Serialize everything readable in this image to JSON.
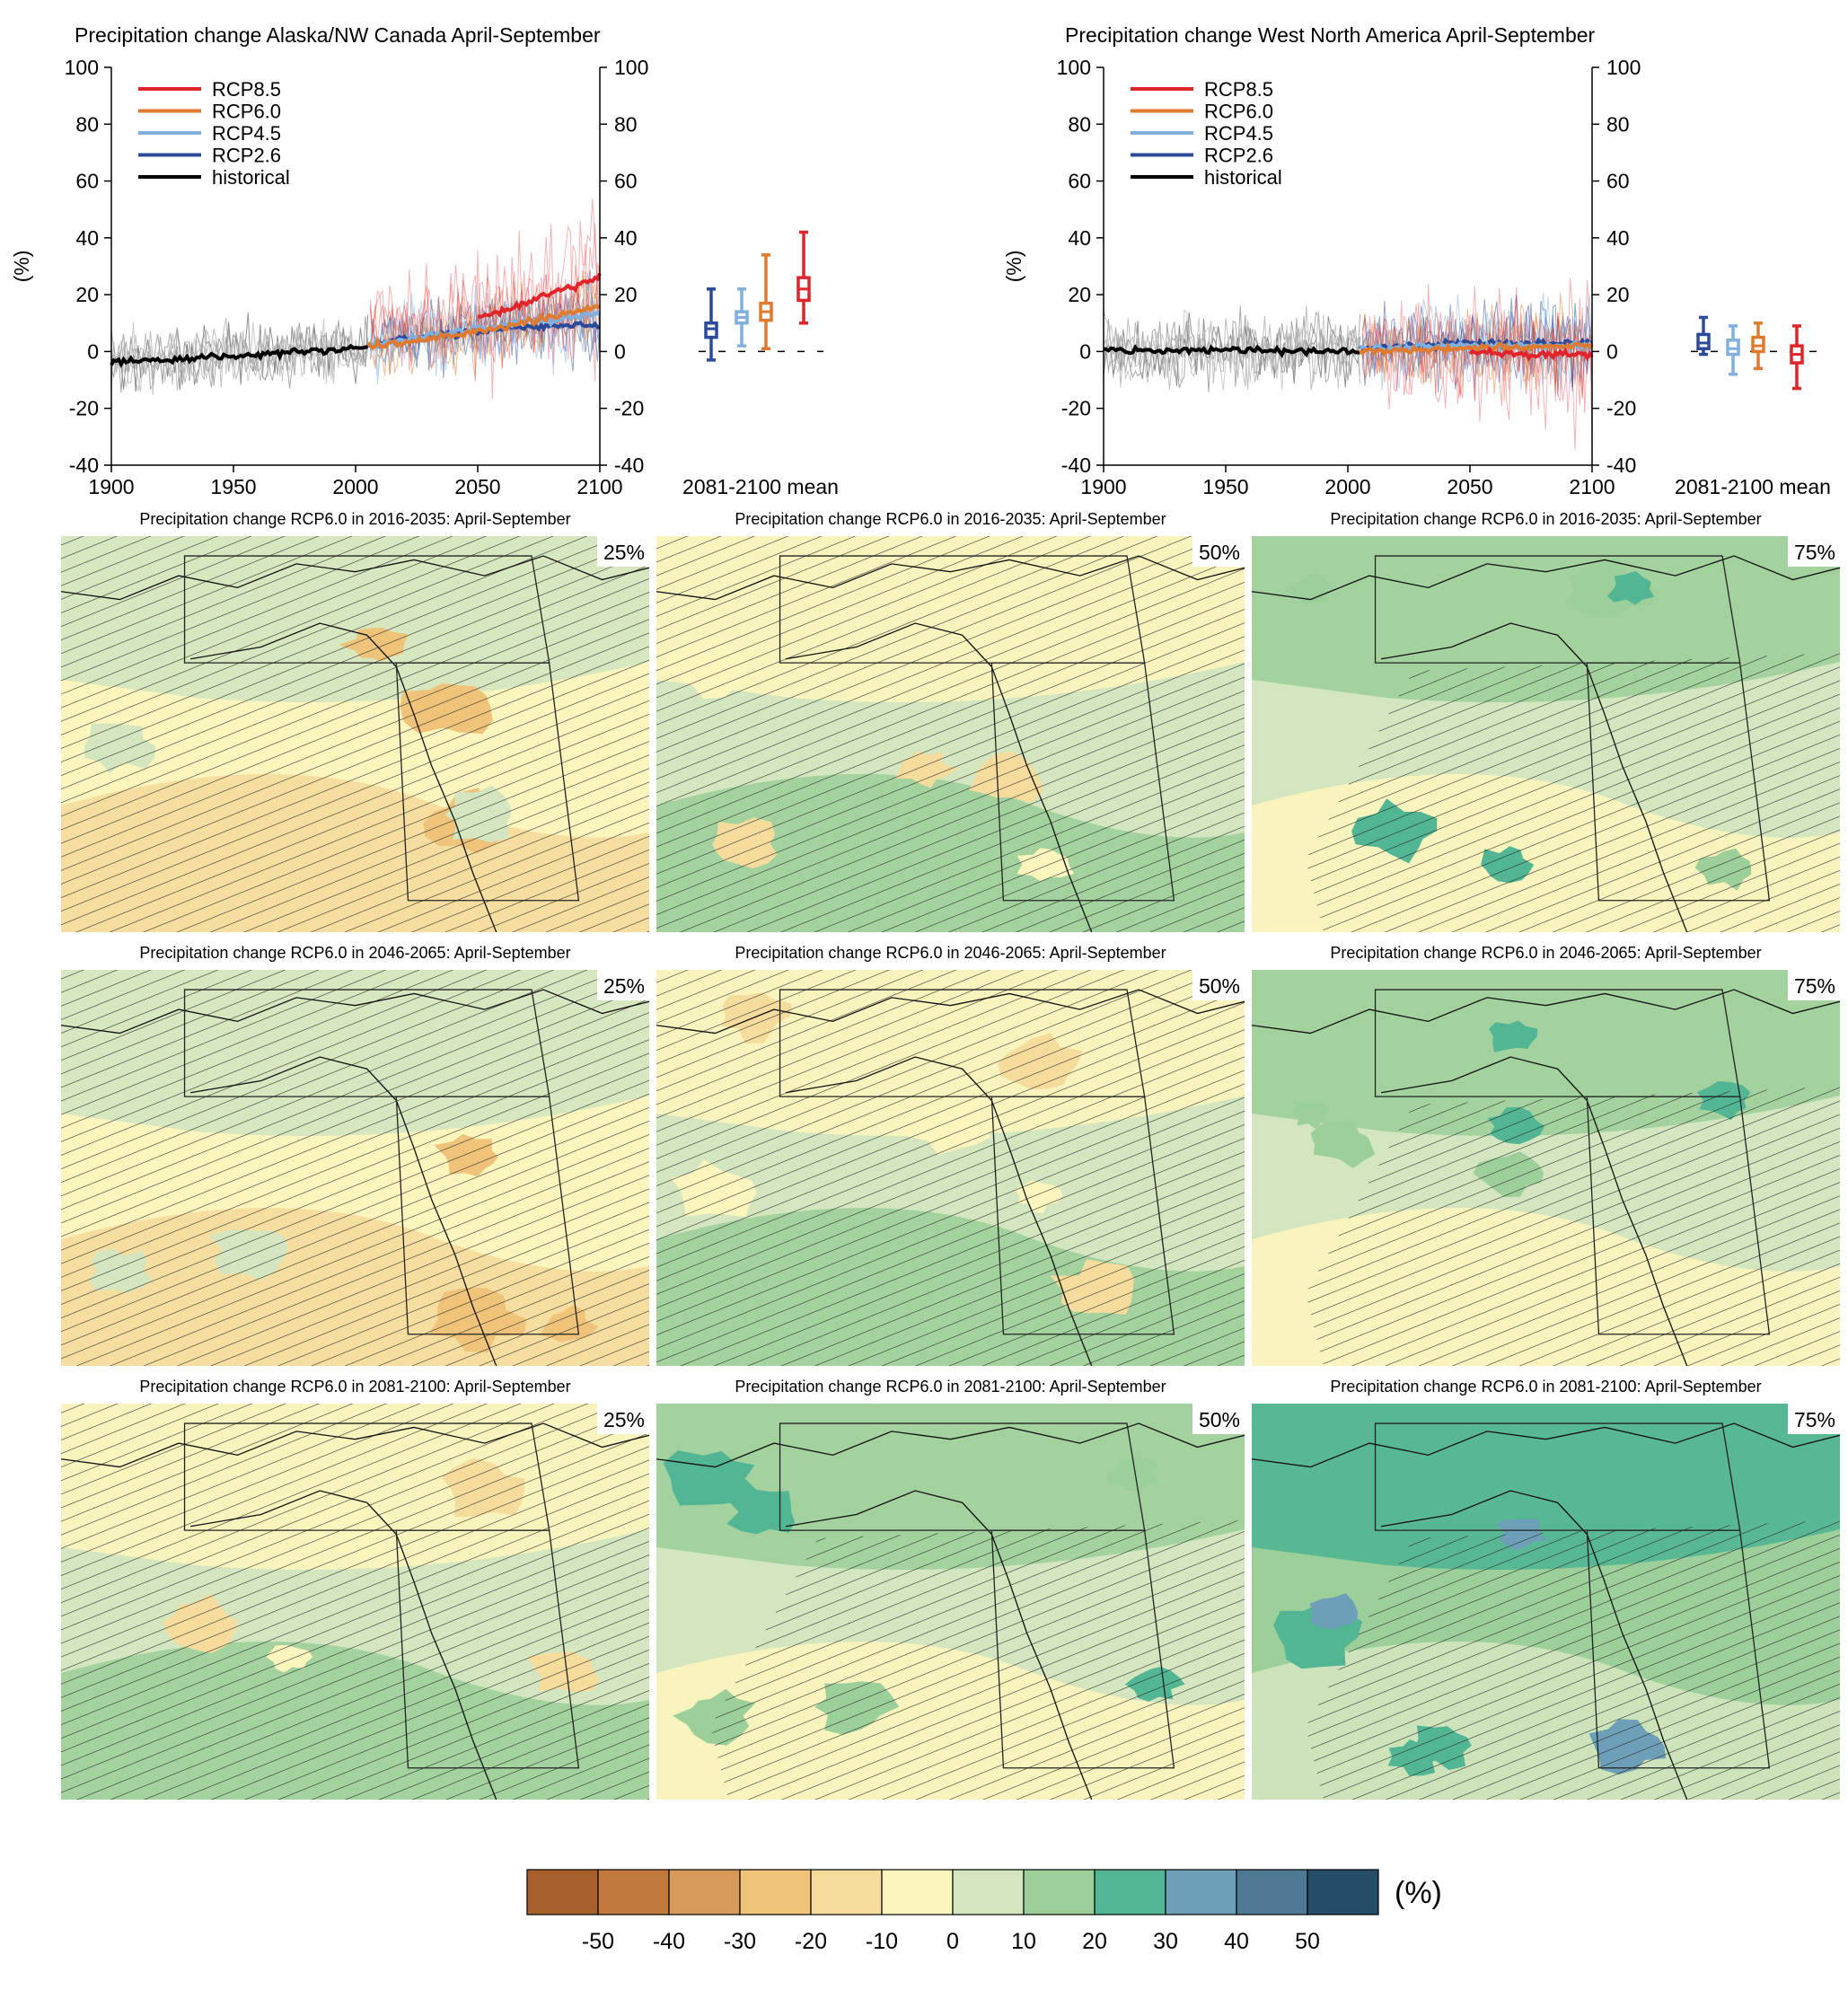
{
  "chart_data": [
    {
      "type": "line",
      "title": "Precipitation change Alaska/NW Canada April-September",
      "ylabel": "(%)",
      "xlim": [
        1900,
        2100
      ],
      "ylim": [
        -40,
        100
      ],
      "x_ticks": [
        "1900",
        "1950",
        "2000",
        "2050",
        "2100"
      ],
      "y_ticks": [
        "100",
        "80",
        "60",
        "40",
        "20",
        "0",
        "-20",
        "-40"
      ],
      "legend": [
        "RCP8.5",
        "RCP6.0",
        "RCP4.5",
        "RCP2.6",
        "historical"
      ],
      "legend_position": "top-left",
      "series": [
        {
          "name": "historical",
          "color": "#000000",
          "x": [
            1900,
            1920,
            1940,
            1960,
            1980,
            2000,
            2005
          ],
          "y": [
            -4,
            -3,
            -2,
            -1,
            0,
            1,
            2
          ]
        },
        {
          "name": "RCP2.6",
          "color": "#2b4a9a",
          "x": [
            2005,
            2025,
            2050,
            2075,
            2100
          ],
          "y": [
            2,
            5,
            7,
            9,
            9
          ]
        },
        {
          "name": "RCP4.5",
          "color": "#7fb0de",
          "x": [
            2005,
            2025,
            2050,
            2075,
            2100
          ],
          "y": [
            2,
            5,
            8,
            11,
            13
          ]
        },
        {
          "name": "RCP6.0",
          "color": "#e07a2e",
          "x": [
            2005,
            2025,
            2050,
            2075,
            2100
          ],
          "y": [
            2,
            4,
            7,
            11,
            16
          ]
        },
        {
          "name": "RCP8.5",
          "color": "#e0242a",
          "x": [
            2050,
            2060,
            2075,
            2090,
            2100
          ],
          "y": [
            12,
            14,
            19,
            23,
            27
          ]
        }
      ],
      "boxplot_label": "2081-2100 mean",
      "boxplots": [
        {
          "name": "RCP2.6",
          "color": "#2b4a9a",
          "min": -3,
          "q1": 5,
          "median": 8,
          "q3": 10,
          "max": 22
        },
        {
          "name": "RCP4.5",
          "color": "#7fb0de",
          "min": 2,
          "q1": 10,
          "median": 12,
          "q3": 14,
          "max": 22
        },
        {
          "name": "RCP6.0",
          "color": "#e07a2e",
          "min": 1,
          "q1": 11,
          "median": 14,
          "q3": 17,
          "max": 34
        },
        {
          "name": "RCP8.5",
          "color": "#e0242a",
          "min": 10,
          "q1": 18,
          "median": 22,
          "q3": 26,
          "max": 42
        }
      ]
    },
    {
      "type": "line",
      "title": "Precipitation change West North America April-September",
      "ylabel": "(%)",
      "xlim": [
        1900,
        2100
      ],
      "ylim": [
        -40,
        100
      ],
      "x_ticks": [
        "1900",
        "1950",
        "2000",
        "2050",
        "2100"
      ],
      "y_ticks": [
        "100",
        "80",
        "60",
        "40",
        "20",
        "0",
        "-20",
        "-40"
      ],
      "legend": [
        "RCP8.5",
        "RCP6.0",
        "RCP4.5",
        "RCP2.6",
        "historical"
      ],
      "legend_position": "top-left",
      "series": [
        {
          "name": "historical",
          "color": "#000000",
          "x": [
            1900,
            1925,
            1950,
            1975,
            2005
          ],
          "y": [
            1,
            0,
            1,
            0,
            0
          ]
        },
        {
          "name": "RCP2.6",
          "color": "#2b4a9a",
          "x": [
            2005,
            2050,
            2100
          ],
          "y": [
            1,
            3,
            3
          ]
        },
        {
          "name": "RCP4.5",
          "color": "#7fb0de",
          "x": [
            2005,
            2050,
            2100
          ],
          "y": [
            1,
            2,
            2
          ]
        },
        {
          "name": "RCP6.0",
          "color": "#e07a2e",
          "x": [
            2005,
            2050,
            2100
          ],
          "y": [
            0,
            1,
            2
          ]
        },
        {
          "name": "RCP8.5",
          "color": "#e0242a",
          "x": [
            2050,
            2075,
            2100
          ],
          "y": [
            0,
            -1,
            -1
          ]
        }
      ],
      "boxplot_label": "2081-2100 mean",
      "boxplots": [
        {
          "name": "RCP2.6",
          "color": "#2b4a9a",
          "min": -1,
          "q1": 1,
          "median": 3,
          "q3": 6,
          "max": 12
        },
        {
          "name": "RCP4.5",
          "color": "#7fb0de",
          "min": -8,
          "q1": -1,
          "median": 1,
          "q3": 4,
          "max": 9
        },
        {
          "name": "RCP6.0",
          "color": "#e07a2e",
          "min": -6,
          "q1": 0,
          "median": 2,
          "q3": 5,
          "max": 10
        },
        {
          "name": "RCP8.5",
          "color": "#e0242a",
          "min": -13,
          "q1": -4,
          "median": -1,
          "q3": 2,
          "max": 9
        }
      ]
    },
    {
      "type": "heatmap",
      "maps": [
        {
          "title": "Precipitation change RCP6.0 in 2016-2035: April-September",
          "percentile": "25%",
          "level": 0
        },
        {
          "title": "Precipitation change RCP6.0 in 2016-2035: April-September",
          "percentile": "50%",
          "level": 1
        },
        {
          "title": "Precipitation change RCP6.0 in 2016-2035: April-September",
          "percentile": "75%",
          "level": 2
        },
        {
          "title": "Precipitation change RCP6.0 in 2046-2065: April-September",
          "percentile": "25%",
          "level": 0
        },
        {
          "title": "Precipitation change RCP6.0 in 2046-2065: April-September",
          "percentile": "50%",
          "level": 1
        },
        {
          "title": "Precipitation change RCP6.0 in 2046-2065: April-September",
          "percentile": "75%",
          "level": 2
        },
        {
          "title": "Precipitation change RCP6.0 in 2081-2100: April-September",
          "percentile": "25%",
          "level": 1
        },
        {
          "title": "Precipitation change RCP6.0 in 2081-2100: April-September",
          "percentile": "50%",
          "level": 2
        },
        {
          "title": "Precipitation change RCP6.0 in 2081-2100: April-September",
          "percentile": "75%",
          "level": 3
        }
      ],
      "colorbar": {
        "unit": "(%)",
        "labels": [
          "-50",
          "-40",
          "-30",
          "-20",
          "-10",
          "0",
          "10",
          "20",
          "30",
          "40",
          "50"
        ],
        "colors": [
          "#a8602c",
          "#c27a3c",
          "#d89a5a",
          "#efc47a",
          "#f5dc9c",
          "#fdf5be",
          "#d3e6bf",
          "#9dcf9a",
          "#52b594",
          "#6e9fb8",
          "#4d7993",
          "#264d68"
        ]
      }
    }
  ]
}
